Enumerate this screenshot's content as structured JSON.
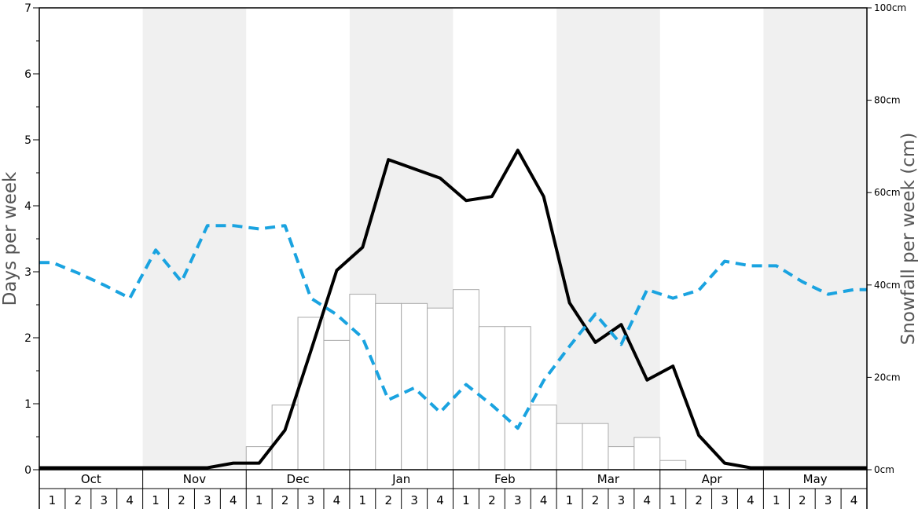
{
  "chart_data": {
    "type": "bar",
    "y_left_label": "Days per week",
    "y_right_label": "Snowfall per week (cm)",
    "ylim_left": [
      0,
      7
    ],
    "ylim_right": [
      0,
      100
    ],
    "y_left_ticks": [
      "0",
      "1",
      "2",
      "3",
      "4",
      "5",
      "6",
      "7"
    ],
    "y_right_ticks": [
      "0cm",
      "20cm",
      "40cm",
      "60cm",
      "80cm",
      "100cm"
    ],
    "months": [
      "Oct",
      "Nov",
      "Dec",
      "Jan",
      "Feb",
      "Mar",
      "Apr",
      "May"
    ],
    "weeks": [
      "1",
      "2",
      "3",
      "4"
    ],
    "month_shading": [
      false,
      true,
      false,
      true,
      false,
      true,
      false,
      true
    ],
    "colors": {
      "shade": "#f0f0f0",
      "bar_stroke": "#aaaaaa",
      "solid_line": "#000000",
      "dashed_line": "#1aa3e0"
    },
    "series": [
      {
        "type": "bar",
        "axis": "right",
        "values": [
          0,
          0,
          0,
          0,
          0,
          0,
          0,
          0,
          5,
          14,
          33,
          28,
          38,
          36,
          36,
          35,
          39,
          31,
          31,
          14,
          10,
          10,
          5,
          7,
          2,
          0,
          0,
          0,
          0,
          0,
          0,
          0
        ]
      },
      {
        "type": "line",
        "style": "solid",
        "axis": "left",
        "values": [
          0.03,
          0.03,
          0.03,
          0.03,
          0.03,
          0.03,
          0.03,
          0.1,
          0.1,
          0.6,
          1.8,
          3.02,
          3.37,
          4.7,
          4.56,
          4.42,
          4.08,
          4.14,
          4.84,
          4.14,
          2.53,
          1.93,
          2.2,
          1.36,
          1.57,
          0.52,
          0.1,
          0.03,
          0.03,
          0.03,
          0.03,
          0.03
        ]
      },
      {
        "type": "line",
        "style": "dashed",
        "axis": "left",
        "values": [
          3.14,
          2.98,
          2.8,
          2.6,
          3.33,
          2.85,
          3.7,
          3.7,
          3.65,
          3.7,
          2.6,
          2.35,
          2.0,
          1.06,
          1.24,
          0.87,
          1.29,
          0.98,
          0.63,
          1.35,
          1.87,
          2.36,
          1.9,
          2.73,
          2.6,
          2.72,
          3.16,
          3.09,
          3.09,
          2.85,
          2.66,
          2.73
        ]
      }
    ]
  }
}
